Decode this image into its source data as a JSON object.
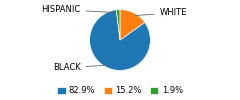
{
  "chart_data": {
    "type": "pie",
    "categories": [
      "BLACK",
      "WHITE",
      "HISPANIC"
    ],
    "values": [
      82.9,
      15.2,
      1.9
    ],
    "value_labels": [
      "82.9%",
      "15.2%",
      "1.9%"
    ],
    "legend": "lower center"
  }
}
